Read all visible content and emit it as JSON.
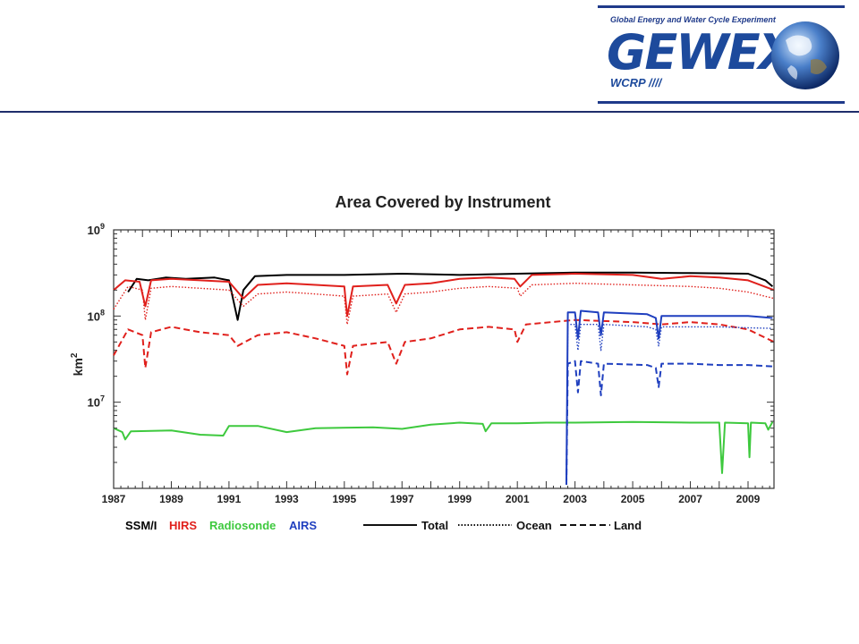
{
  "logo": {
    "tagline": "Global Energy and Water Cycle Experiment",
    "wordmark": "GEWEX",
    "sub": "WCRP ////"
  },
  "chart_data": {
    "type": "line",
    "title": "Area Covered by Instrument",
    "ylabel": "km",
    "ylabel_exp": "2",
    "yscale": "log",
    "ylim": [
      1000000,
      1000000000
    ],
    "y_tick_labels": [
      {
        "base": "10",
        "exp": "9",
        "value": 1000000000
      },
      {
        "base": "10",
        "exp": "8",
        "value": 100000000
      },
      {
        "base": "10",
        "exp": "7",
        "value": 10000000
      }
    ],
    "xlim": [
      1987,
      2009.9
    ],
    "x_ticks": [
      "1987",
      "1989",
      "1991",
      "1993",
      "1995",
      "1997",
      "1999",
      "2001",
      "2003",
      "2005",
      "2007",
      "2009"
    ],
    "legend_instruments": [
      {
        "label": "SSM/I",
        "color": "#000000"
      },
      {
        "label": "HIRS",
        "color": "#e0201c"
      },
      {
        "label": "Radiosonde",
        "color": "#3ec93e"
      },
      {
        "label": "AIRS",
        "color": "#1f3fbf"
      }
    ],
    "legend_styles": [
      {
        "label": "Total",
        "dash": "solid"
      },
      {
        "label": "Ocean",
        "dash": "dotted"
      },
      {
        "label": "Land",
        "dash": "dashed"
      }
    ],
    "series": [
      {
        "instrument": "SSM/I",
        "style": "solid",
        "color": "#000000",
        "points": [
          [
            1987.5,
            190000000
          ],
          [
            1987.8,
            270000000
          ],
          [
            1988.2,
            260000000
          ],
          [
            1988.8,
            280000000
          ],
          [
            1989.5,
            270000000
          ],
          [
            1990.5,
            280000000
          ],
          [
            1991.0,
            260000000
          ],
          [
            1991.3,
            90000000
          ],
          [
            1991.5,
            200000000
          ],
          [
            1991.9,
            290000000
          ],
          [
            1993,
            300000000
          ],
          [
            1995,
            300000000
          ],
          [
            1997,
            310000000
          ],
          [
            1999,
            300000000
          ],
          [
            2001,
            310000000
          ],
          [
            2003,
            320000000
          ],
          [
            2005,
            320000000
          ],
          [
            2007,
            315000000
          ],
          [
            2009,
            310000000
          ],
          [
            2009.6,
            260000000
          ],
          [
            2009.85,
            220000000
          ]
        ]
      },
      {
        "instrument": "HIRS",
        "style": "solid",
        "color": "#e0201c",
        "points": [
          [
            1987,
            200000000
          ],
          [
            1987.4,
            260000000
          ],
          [
            1987.9,
            250000000
          ],
          [
            1988.1,
            130000000
          ],
          [
            1988.3,
            260000000
          ],
          [
            1989,
            270000000
          ],
          [
            1990,
            260000000
          ],
          [
            1991,
            250000000
          ],
          [
            1991.5,
            160000000
          ],
          [
            1992,
            230000000
          ],
          [
            1993,
            240000000
          ],
          [
            1994,
            230000000
          ],
          [
            1995.0,
            220000000
          ],
          [
            1995.1,
            100000000
          ],
          [
            1995.3,
            220000000
          ],
          [
            1996.5,
            230000000
          ],
          [
            1996.8,
            140000000
          ],
          [
            1997.1,
            230000000
          ],
          [
            1998,
            240000000
          ],
          [
            1999,
            270000000
          ],
          [
            2000,
            280000000
          ],
          [
            2000.9,
            270000000
          ],
          [
            2001.1,
            220000000
          ],
          [
            2001.5,
            300000000
          ],
          [
            2003,
            310000000
          ],
          [
            2005,
            300000000
          ],
          [
            2006,
            270000000
          ],
          [
            2007,
            290000000
          ],
          [
            2008,
            280000000
          ],
          [
            2009,
            260000000
          ],
          [
            2009.9,
            200000000
          ]
        ]
      },
      {
        "instrument": "HIRS",
        "style": "dotted",
        "color": "#e0201c",
        "points": [
          [
            1987,
            120000000
          ],
          [
            1987.5,
            220000000
          ],
          [
            1988,
            200000000
          ],
          [
            1988.1,
            90000000
          ],
          [
            1988.3,
            210000000
          ],
          [
            1989,
            220000000
          ],
          [
            1990,
            210000000
          ],
          [
            1991,
            200000000
          ],
          [
            1991.5,
            130000000
          ],
          [
            1992,
            180000000
          ],
          [
            1993,
            190000000
          ],
          [
            1994,
            180000000
          ],
          [
            1995.0,
            170000000
          ],
          [
            1995.1,
            80000000
          ],
          [
            1995.3,
            170000000
          ],
          [
            1996.5,
            180000000
          ],
          [
            1996.8,
            110000000
          ],
          [
            1997.1,
            180000000
          ],
          [
            1998,
            190000000
          ],
          [
            1999,
            210000000
          ],
          [
            2000,
            220000000
          ],
          [
            2001,
            210000000
          ],
          [
            2001.1,
            170000000
          ],
          [
            2001.5,
            230000000
          ],
          [
            2003,
            240000000
          ],
          [
            2005,
            230000000
          ],
          [
            2007,
            220000000
          ],
          [
            2008,
            210000000
          ],
          [
            2009,
            190000000
          ],
          [
            2009.9,
            160000000
          ]
        ]
      },
      {
        "instrument": "HIRS",
        "style": "dashed",
        "color": "#e0201c",
        "points": [
          [
            1987,
            35000000
          ],
          [
            1987.5,
            70000000
          ],
          [
            1988.0,
            60000000
          ],
          [
            1988.1,
            25000000
          ],
          [
            1988.3,
            65000000
          ],
          [
            1989,
            75000000
          ],
          [
            1990,
            65000000
          ],
          [
            1991,
            60000000
          ],
          [
            1991.3,
            45000000
          ],
          [
            1992,
            60000000
          ],
          [
            1993,
            65000000
          ],
          [
            1994,
            55000000
          ],
          [
            1995.0,
            45000000
          ],
          [
            1995.1,
            21000000
          ],
          [
            1995.3,
            45000000
          ],
          [
            1996.5,
            50000000
          ],
          [
            1996.8,
            28000000
          ],
          [
            1997.1,
            50000000
          ],
          [
            1998,
            55000000
          ],
          [
            1999,
            70000000
          ],
          [
            2000,
            75000000
          ],
          [
            2000.9,
            70000000
          ],
          [
            2001.0,
            50000000
          ],
          [
            2001.3,
            80000000
          ],
          [
            2003,
            90000000
          ],
          [
            2005,
            85000000
          ],
          [
            2006,
            80000000
          ],
          [
            2007,
            85000000
          ],
          [
            2008,
            80000000
          ],
          [
            2009,
            70000000
          ],
          [
            2009.9,
            50000000
          ]
        ]
      },
      {
        "instrument": "Radiosonde",
        "style": "solid",
        "color": "#3ec93e",
        "points": [
          [
            1987,
            5000000
          ],
          [
            1987.3,
            4500000
          ],
          [
            1987.4,
            3700000
          ],
          [
            1987.6,
            4600000
          ],
          [
            1989,
            4700000
          ],
          [
            1990,
            4200000
          ],
          [
            1990.8,
            4100000
          ],
          [
            1991.0,
            5300000
          ],
          [
            1992,
            5300000
          ],
          [
            1993,
            4500000
          ],
          [
            1994,
            5000000
          ],
          [
            1996,
            5100000
          ],
          [
            1997,
            4900000
          ],
          [
            1998,
            5500000
          ],
          [
            1999,
            5800000
          ],
          [
            1999.8,
            5600000
          ],
          [
            1999.9,
            4600000
          ],
          [
            2000.1,
            5700000
          ],
          [
            2001,
            5700000
          ],
          [
            2002,
            5800000
          ],
          [
            2003,
            5800000
          ],
          [
            2005,
            5900000
          ],
          [
            2007,
            5800000
          ],
          [
            2008,
            5800000
          ],
          [
            2008.1,
            1500000
          ],
          [
            2008.2,
            5800000
          ],
          [
            2009.0,
            5700000
          ],
          [
            2009.05,
            2300000
          ],
          [
            2009.1,
            5800000
          ],
          [
            2009.6,
            5700000
          ],
          [
            2009.7,
            4800000
          ],
          [
            2009.85,
            5900000
          ]
        ]
      },
      {
        "instrument": "AIRS",
        "style": "solid",
        "color": "#1f3fbf",
        "points": [
          [
            2002.7,
            1200000
          ],
          [
            2002.75,
            110000000
          ],
          [
            2003.0,
            110000000
          ],
          [
            2003.1,
            55000000
          ],
          [
            2003.2,
            115000000
          ],
          [
            2003.8,
            110000000
          ],
          [
            2003.9,
            60000000
          ],
          [
            2004.0,
            110000000
          ],
          [
            2005.5,
            105000000
          ],
          [
            2005.8,
            95000000
          ],
          [
            2005.9,
            55000000
          ],
          [
            2006.0,
            100000000
          ],
          [
            2007,
            100000000
          ],
          [
            2008,
            100000000
          ],
          [
            2009,
            100000000
          ],
          [
            2009.85,
            95000000
          ]
        ]
      },
      {
        "instrument": "AIRS",
        "style": "dotted",
        "color": "#1f3fbf",
        "points": [
          [
            2002.7,
            1200000
          ],
          [
            2002.75,
            80000000
          ],
          [
            2003.0,
            80000000
          ],
          [
            2003.1,
            40000000
          ],
          [
            2003.2,
            80000000
          ],
          [
            2003.8,
            80000000
          ],
          [
            2003.9,
            40000000
          ],
          [
            2004.0,
            80000000
          ],
          [
            2005.5,
            75000000
          ],
          [
            2005.8,
            70000000
          ],
          [
            2005.9,
            45000000
          ],
          [
            2006.0,
            75000000
          ],
          [
            2007,
            75000000
          ],
          [
            2008,
            75000000
          ],
          [
            2009,
            73000000
          ],
          [
            2009.85,
            72000000
          ]
        ]
      },
      {
        "instrument": "AIRS",
        "style": "dashed",
        "color": "#1f3fbf",
        "points": [
          [
            2002.7,
            1100000
          ],
          [
            2002.75,
            28000000
          ],
          [
            2003.0,
            30000000
          ],
          [
            2003.1,
            13000000
          ],
          [
            2003.2,
            30000000
          ],
          [
            2003.8,
            28000000
          ],
          [
            2003.9,
            12000000
          ],
          [
            2004.0,
            28000000
          ],
          [
            2005.5,
            27000000
          ],
          [
            2005.8,
            25000000
          ],
          [
            2005.9,
            15000000
          ],
          [
            2006.0,
            28000000
          ],
          [
            2007,
            28000000
          ],
          [
            2008,
            27000000
          ],
          [
            2009,
            27000000
          ],
          [
            2009.85,
            26000000
          ]
        ]
      }
    ]
  }
}
